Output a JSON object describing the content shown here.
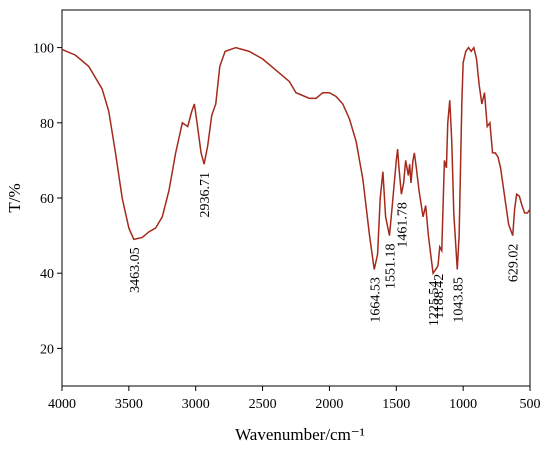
{
  "chart_data": {
    "type": "line",
    "xlabel": "Wavenumber/cm⁻¹",
    "ylabel": "T/%",
    "color": "#a32a1c",
    "xlim": [
      4000,
      500
    ],
    "ylim": [
      10,
      110
    ],
    "xticks": [
      4000,
      3500,
      3000,
      2500,
      2000,
      1500,
      1000,
      500
    ],
    "yticks": [
      20,
      40,
      60,
      80,
      100
    ],
    "grid": false,
    "x": [
      4000,
      3900,
      3800,
      3700,
      3650,
      3600,
      3550,
      3500,
      3463,
      3400,
      3350,
      3300,
      3250,
      3200,
      3150,
      3100,
      3060,
      3030,
      3010,
      2990,
      2960,
      2937,
      2910,
      2880,
      2850,
      2820,
      2780,
      2700,
      2600,
      2500,
      2400,
      2300,
      2250,
      2150,
      2100,
      2050,
      2000,
      1950,
      1900,
      1850,
      1800,
      1750,
      1700,
      1665,
      1640,
      1620,
      1600,
      1580,
      1551,
      1530,
      1500,
      1490,
      1480,
      1462,
      1445,
      1430,
      1410,
      1400,
      1390,
      1375,
      1365,
      1350,
      1330,
      1300,
      1280,
      1260,
      1225,
      1205,
      1188,
      1175,
      1160,
      1140,
      1125,
      1115,
      1100,
      1085,
      1070,
      1044,
      1030,
      1010,
      1000,
      980,
      960,
      940,
      920,
      900,
      880,
      860,
      840,
      820,
      800,
      780,
      760,
      740,
      720,
      700,
      680,
      660,
      629,
      615,
      600,
      580,
      560,
      540,
      520,
      500
    ],
    "values": [
      99.5,
      98,
      95,
      89,
      83,
      72,
      60,
      52,
      49,
      49.5,
      51,
      52,
      55,
      62,
      72,
      80,
      79,
      83,
      85,
      80,
      72,
      69,
      74,
      82,
      85,
      95,
      99,
      100,
      99,
      97,
      94,
      91,
      88,
      86.5,
      86.5,
      88,
      88,
      87,
      85,
      81,
      75,
      65,
      50,
      41,
      45,
      60,
      67,
      55,
      50,
      58,
      70,
      73,
      68,
      61,
      64,
      70,
      66,
      69,
      64,
      70,
      72,
      68,
      62,
      55,
      58,
      50,
      40,
      41,
      42,
      47,
      46,
      70,
      68,
      80,
      86,
      75,
      56,
      41,
      50,
      85,
      96,
      99,
      100,
      99,
      100,
      97,
      90,
      85,
      88,
      79,
      80,
      72,
      72,
      71,
      68,
      63,
      58,
      53,
      50,
      57,
      61,
      60.5,
      58,
      56,
      56,
      57
    ],
    "annotations": [
      {
        "text": "3463.05",
        "x": 3463.05
      },
      {
        "text": "2936.71",
        "x": 2936.71
      },
      {
        "text": "1664.53",
        "x": 1664.53
      },
      {
        "text": "1551.18",
        "x": 1551.18
      },
      {
        "text": "1461.78",
        "x": 1461.78
      },
      {
        "text": "1225.54",
        "x": 1225.54
      },
      {
        "text": "1188.42",
        "x": 1188.42
      },
      {
        "text": "1043.85",
        "x": 1043.85
      },
      {
        "text": "629.02",
        "x": 629.02
      }
    ]
  }
}
